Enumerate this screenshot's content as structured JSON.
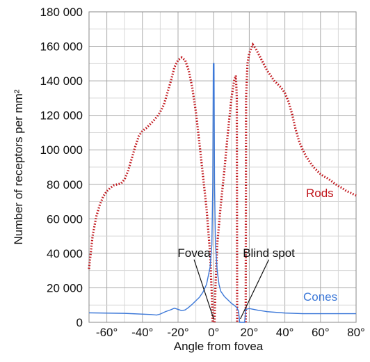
{
  "chart_data": {
    "type": "line",
    "title": "",
    "xlabel": "Angle from fovea",
    "ylabel": "Number of receptors per mm²",
    "xlim": [
      -70,
      80
    ],
    "ylim": [
      0,
      180000
    ],
    "grid": true,
    "x_ticks": [
      "-60°",
      "-40°",
      "-20°",
      "0°",
      "20°",
      "40°",
      "60°",
      "80°"
    ],
    "y_ticks": [
      "0",
      "20 000",
      "40 000",
      "60 000",
      "80 000",
      "100 000",
      "120 000",
      "140 000",
      "160 000",
      "180 000"
    ],
    "series": [
      {
        "name": "Rods",
        "color": "#c0151b",
        "style": "dotted",
        "segments": [
          [
            [
              -70,
              31000
            ],
            [
              -68,
              50000
            ],
            [
              -66,
              61000
            ],
            [
              -64,
              68000
            ],
            [
              -62,
              73000
            ],
            [
              -60,
              76000
            ],
            [
              -58,
              78000
            ],
            [
              -56,
              79500
            ],
            [
              -54,
              80000
            ],
            [
              -52,
              80500
            ],
            [
              -50,
              83000
            ],
            [
              -48,
              88000
            ],
            [
              -46,
              95000
            ],
            [
              -44,
              102000
            ],
            [
              -42,
              108000
            ],
            [
              -40,
              111000
            ],
            [
              -38,
              112500
            ],
            [
              -36,
              114500
            ],
            [
              -34,
              116500
            ],
            [
              -32,
              119000
            ],
            [
              -30,
              122000
            ],
            [
              -28,
              126000
            ],
            [
              -26,
              133000
            ],
            [
              -24,
              140000
            ],
            [
              -22,
              148000
            ],
            [
              -20,
              152000
            ],
            [
              -18,
              153500
            ],
            [
              -16,
              152000
            ],
            [
              -14,
              146000
            ],
            [
              -12,
              136000
            ],
            [
              -10,
              122000
            ],
            [
              -8,
              104000
            ],
            [
              -6,
              85000
            ],
            [
              -4,
              66000
            ],
            [
              -2,
              40000
            ],
            [
              -1,
              15000
            ],
            [
              -0.5,
              0
            ]
          ],
          [
            [
              0.5,
              0
            ],
            [
              1,
              20000
            ],
            [
              2,
              45000
            ],
            [
              4,
              68000
            ],
            [
              6,
              88000
            ],
            [
              8,
              110000
            ],
            [
              10,
              130000
            ],
            [
              11.5,
              140000
            ],
            [
              12.5,
              143000
            ],
            [
              13,
              130000
            ],
            [
              13.2,
              0
            ]
          ],
          [
            [
              18,
              0
            ],
            [
              18.2,
              130000
            ],
            [
              19,
              150000
            ],
            [
              20,
              156000
            ],
            [
              22,
              161000
            ],
            [
              24,
              158000
            ],
            [
              26,
              154000
            ],
            [
              28,
              150000
            ],
            [
              30,
              146000
            ],
            [
              32,
              143000
            ],
            [
              34,
              140000
            ],
            [
              36,
              138000
            ],
            [
              38,
              136000
            ],
            [
              40,
              133000
            ],
            [
              42,
              128000
            ],
            [
              44,
              121000
            ],
            [
              46,
              112000
            ],
            [
              48,
              105000
            ],
            [
              50,
              100000
            ],
            [
              52,
              96000
            ],
            [
              54,
              93000
            ],
            [
              56,
              90000
            ],
            [
              58,
              88000
            ],
            [
              60,
              86000
            ],
            [
              62,
              84500
            ],
            [
              64,
              83500
            ],
            [
              66,
              82000
            ],
            [
              68,
              80500
            ],
            [
              70,
              79000
            ],
            [
              72,
              78000
            ],
            [
              74,
              76500
            ],
            [
              76,
              75500
            ],
            [
              78,
              74500
            ],
            [
              80,
              73500
            ]
          ]
        ]
      },
      {
        "name": "Cones",
        "color": "#3c78d8",
        "style": "solid",
        "segments": [
          [
            [
              -70,
              5500
            ],
            [
              -50,
              5200
            ],
            [
              -35,
              4500
            ],
            [
              -32,
              4200
            ],
            [
              -30,
              4800
            ],
            [
              -27,
              6200
            ],
            [
              -24,
              7300
            ],
            [
              -22,
              8200
            ],
            [
              -20,
              7500
            ],
            [
              -18,
              6800
            ],
            [
              -16,
              7200
            ],
            [
              -14,
              8700
            ],
            [
              -12,
              10500
            ],
            [
              -10,
              12500
            ],
            [
              -8,
              14500
            ],
            [
              -6,
              17500
            ],
            [
              -4,
              22000
            ],
            [
              -3,
              27000
            ],
            [
              -2,
              32000
            ],
            [
              -1,
              45000
            ],
            [
              -0.5,
              80000
            ],
            [
              -0.2,
              150000
            ],
            [
              0,
              150000
            ],
            [
              0.2,
              150000
            ],
            [
              0.5,
              80000
            ],
            [
              1,
              45000
            ],
            [
              2,
              30000
            ],
            [
              3,
              22000
            ],
            [
              4,
              18000
            ],
            [
              6,
              15000
            ],
            [
              8,
              13000
            ],
            [
              10,
              11000
            ],
            [
              12,
              9500
            ],
            [
              13,
              8500
            ],
            [
              14,
              6500
            ],
            [
              14.6,
              0
            ],
            [
              17.4,
              0
            ],
            [
              18,
              7500
            ],
            [
              20,
              8000
            ],
            [
              25,
              7000
            ],
            [
              30,
              6200
            ],
            [
              40,
              5400
            ],
            [
              50,
              5000
            ],
            [
              60,
              5000
            ],
            [
              70,
              5000
            ],
            [
              80,
              5000
            ]
          ]
        ]
      }
    ],
    "annotations": [
      {
        "text": "Fovea",
        "label_x": -11,
        "label_y": 38000,
        "point_x": 0,
        "point_y": 2000
      },
      {
        "text": "Blind spot",
        "label_x": 31,
        "label_y": 38000,
        "point_x": 15,
        "point_y": 2000
      }
    ]
  },
  "legend": {
    "rods_label": "Rods",
    "cones_label": "Cones"
  }
}
